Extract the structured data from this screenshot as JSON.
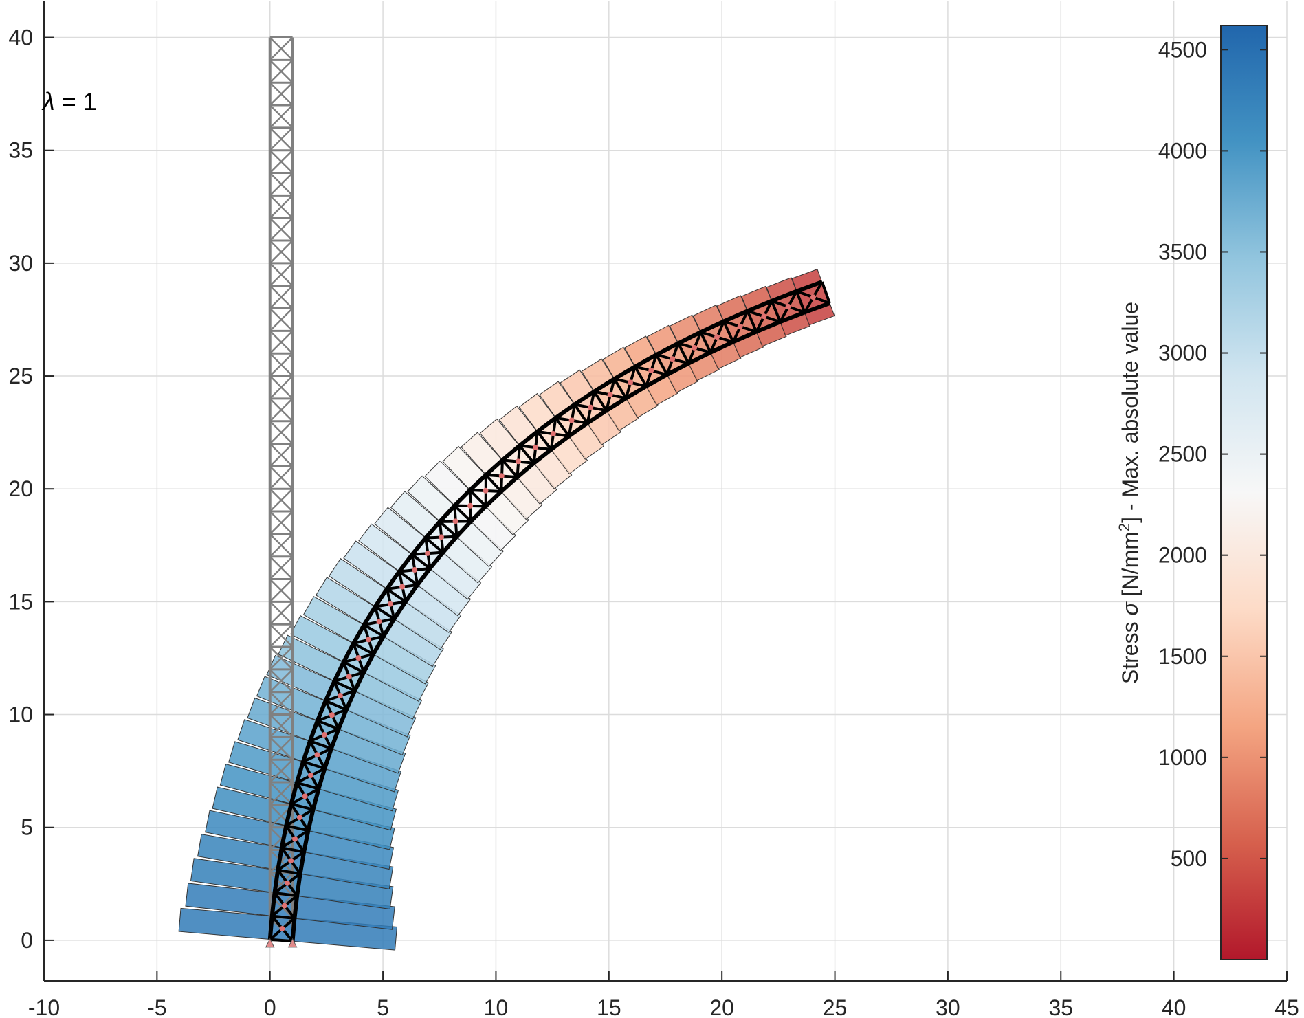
{
  "chart_data": {
    "type": "structural-stress-plot",
    "xlim": [
      -10,
      45
    ],
    "ylim": [
      -1.8,
      41.6
    ],
    "x_ticks": [
      "-10",
      "-5",
      "0",
      "5",
      "10",
      "15",
      "20",
      "25",
      "30",
      "35",
      "40",
      "45"
    ],
    "y_ticks": [
      "0",
      "5",
      "10",
      "15",
      "20",
      "25",
      "30",
      "35",
      "40"
    ],
    "grid": true,
    "annotation": {
      "symbol": "λ",
      "text": " =  1"
    },
    "undeformed_truss": {
      "color": "#808080",
      "x_left": 0,
      "x_right": 1,
      "y_bottom": 0,
      "y_top": 40,
      "panels": 40
    },
    "deformed_truss": {
      "color": "#000000",
      "base_x": 0.5,
      "base_y": 0,
      "tip_x": 24.6,
      "tip_y": 28.7,
      "panels": 40
    },
    "stress_blocks": {
      "count": 40,
      "values": [
        4350,
        4330,
        4290,
        4240,
        4180,
        4110,
        4040,
        3960,
        3880,
        3790,
        3700,
        3600,
        3500,
        3400,
        3290,
        3180,
        3070,
        2960,
        2840,
        2720,
        2600,
        2480,
        2360,
        2240,
        2120,
        2000,
        1880,
        1760,
        1640,
        1520,
        1400,
        1280,
        1160,
        1040,
        920,
        800,
        680,
        560,
        440,
        320
      ],
      "outer_width": [
        4.0,
        3.8,
        3.7,
        3.55,
        3.4,
        3.3,
        3.2,
        3.1,
        3.0,
        2.9,
        2.85,
        2.8,
        2.7,
        2.6,
        2.5,
        2.45,
        2.4,
        2.3,
        2.2,
        2.1,
        2.0,
        1.9,
        1.8,
        1.7,
        1.6,
        1.5,
        1.4,
        1.3,
        1.2,
        1.1,
        1.0,
        0.95,
        0.9,
        0.85,
        0.8,
        0.75,
        0.7,
        0.65,
        0.6,
        0.55
      ],
      "inner_width": [
        4.5,
        4.3,
        4.1,
        3.95,
        3.8,
        3.65,
        3.5,
        3.35,
        3.2,
        3.1,
        3.0,
        2.9,
        2.8,
        2.7,
        2.6,
        2.5,
        2.4,
        2.3,
        2.2,
        2.1,
        2.0,
        1.9,
        1.8,
        1.7,
        1.6,
        1.5,
        1.4,
        1.3,
        1.2,
        1.1,
        1.0,
        0.95,
        0.9,
        0.85,
        0.8,
        0.75,
        0.7,
        0.65,
        0.6,
        0.55
      ]
    },
    "colorbar": {
      "min": 0,
      "max": 4620,
      "ticks": [
        "500",
        "1000",
        "1500",
        "2000",
        "2500",
        "3000",
        "3500",
        "4000",
        "4500"
      ],
      "colors": [
        "#b2182b",
        "#d6604d",
        "#f4a582",
        "#fddbc7",
        "#f7f7f7",
        "#d1e5f0",
        "#92c5de",
        "#4393c3",
        "#2166ac"
      ],
      "colors_note": "",
      "label_prefix": "Stress ",
      "label_sigma": "σ",
      "label_unit_open": " [N/mm",
      "label_unit_sup": "2",
      "label_unit_close": "]  -  Max. absolute value"
    }
  }
}
